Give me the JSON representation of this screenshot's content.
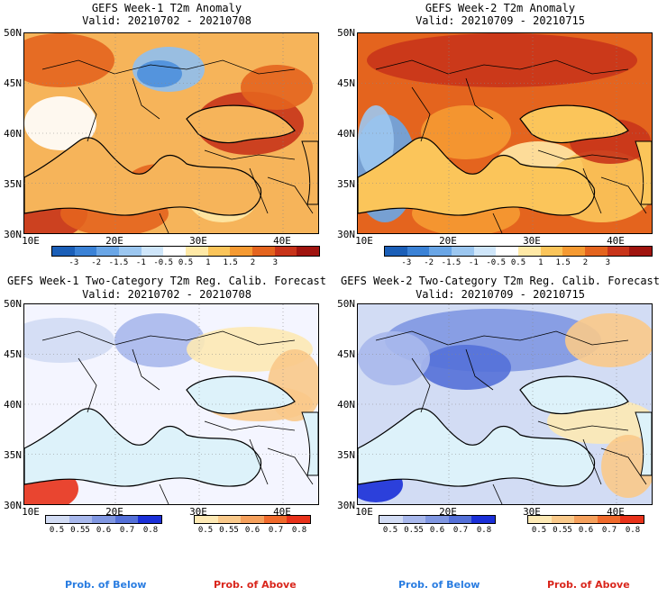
{
  "panels": [
    {
      "title": "GEFS Week-1 T2m Anomaly",
      "valid": "Valid: 20210702 - 20210708",
      "type": "anomaly"
    },
    {
      "title": "GEFS Week-2 T2m Anomaly",
      "valid": "Valid: 20210709 - 20210715",
      "type": "anomaly"
    },
    {
      "title": "GEFS Week-1 Two-Category T2m Reg. Calib. Forecast",
      "valid": "Valid: 20210702 - 20210708",
      "type": "prob"
    },
    {
      "title": "GEFS Week-2 Two-Category T2m Reg. Calib. Forecast",
      "valid": "Valid: 20210709 - 20210715",
      "type": "prob"
    }
  ],
  "lat_labels": [
    "50N",
    "45N",
    "40N",
    "35N",
    "30N"
  ],
  "lon_labels": [
    "10E",
    "20E",
    "30E",
    "40E"
  ],
  "anomaly_colorbar": {
    "labels": [
      "-3",
      "-2",
      "-1.5",
      "-1",
      "-0.5",
      "0.5",
      "1",
      "1.5",
      "2",
      "3"
    ],
    "colors": [
      "#1b5fb8",
      "#3b82d6",
      "#6aa6e6",
      "#9cc7f0",
      "#cfe6fa",
      "#ffffff",
      "#ffe9a6",
      "#fbc55a",
      "#f59a32",
      "#e4641e",
      "#c8341a",
      "#a0140f"
    ]
  },
  "prob_below_colorbar": {
    "labels": [
      "0.5",
      "0.55",
      "0.6",
      "0.7",
      "0.8"
    ],
    "colors": [
      "#d2dcf4",
      "#a8b8ec",
      "#8097e2",
      "#5470d8",
      "#1a2fd8"
    ]
  },
  "prob_above_colorbar": {
    "labels": [
      "0.5",
      "0.55",
      "0.6",
      "0.7",
      "0.8"
    ],
    "colors": [
      "#fde9b4",
      "#f9c98a",
      "#f5a05c",
      "#f06a2c",
      "#e8321a"
    ]
  },
  "legend": {
    "below": "Prob. of Below",
    "above": "Prob. of Above",
    "below_color": "#2a7de1",
    "above_color": "#d9261c"
  }
}
